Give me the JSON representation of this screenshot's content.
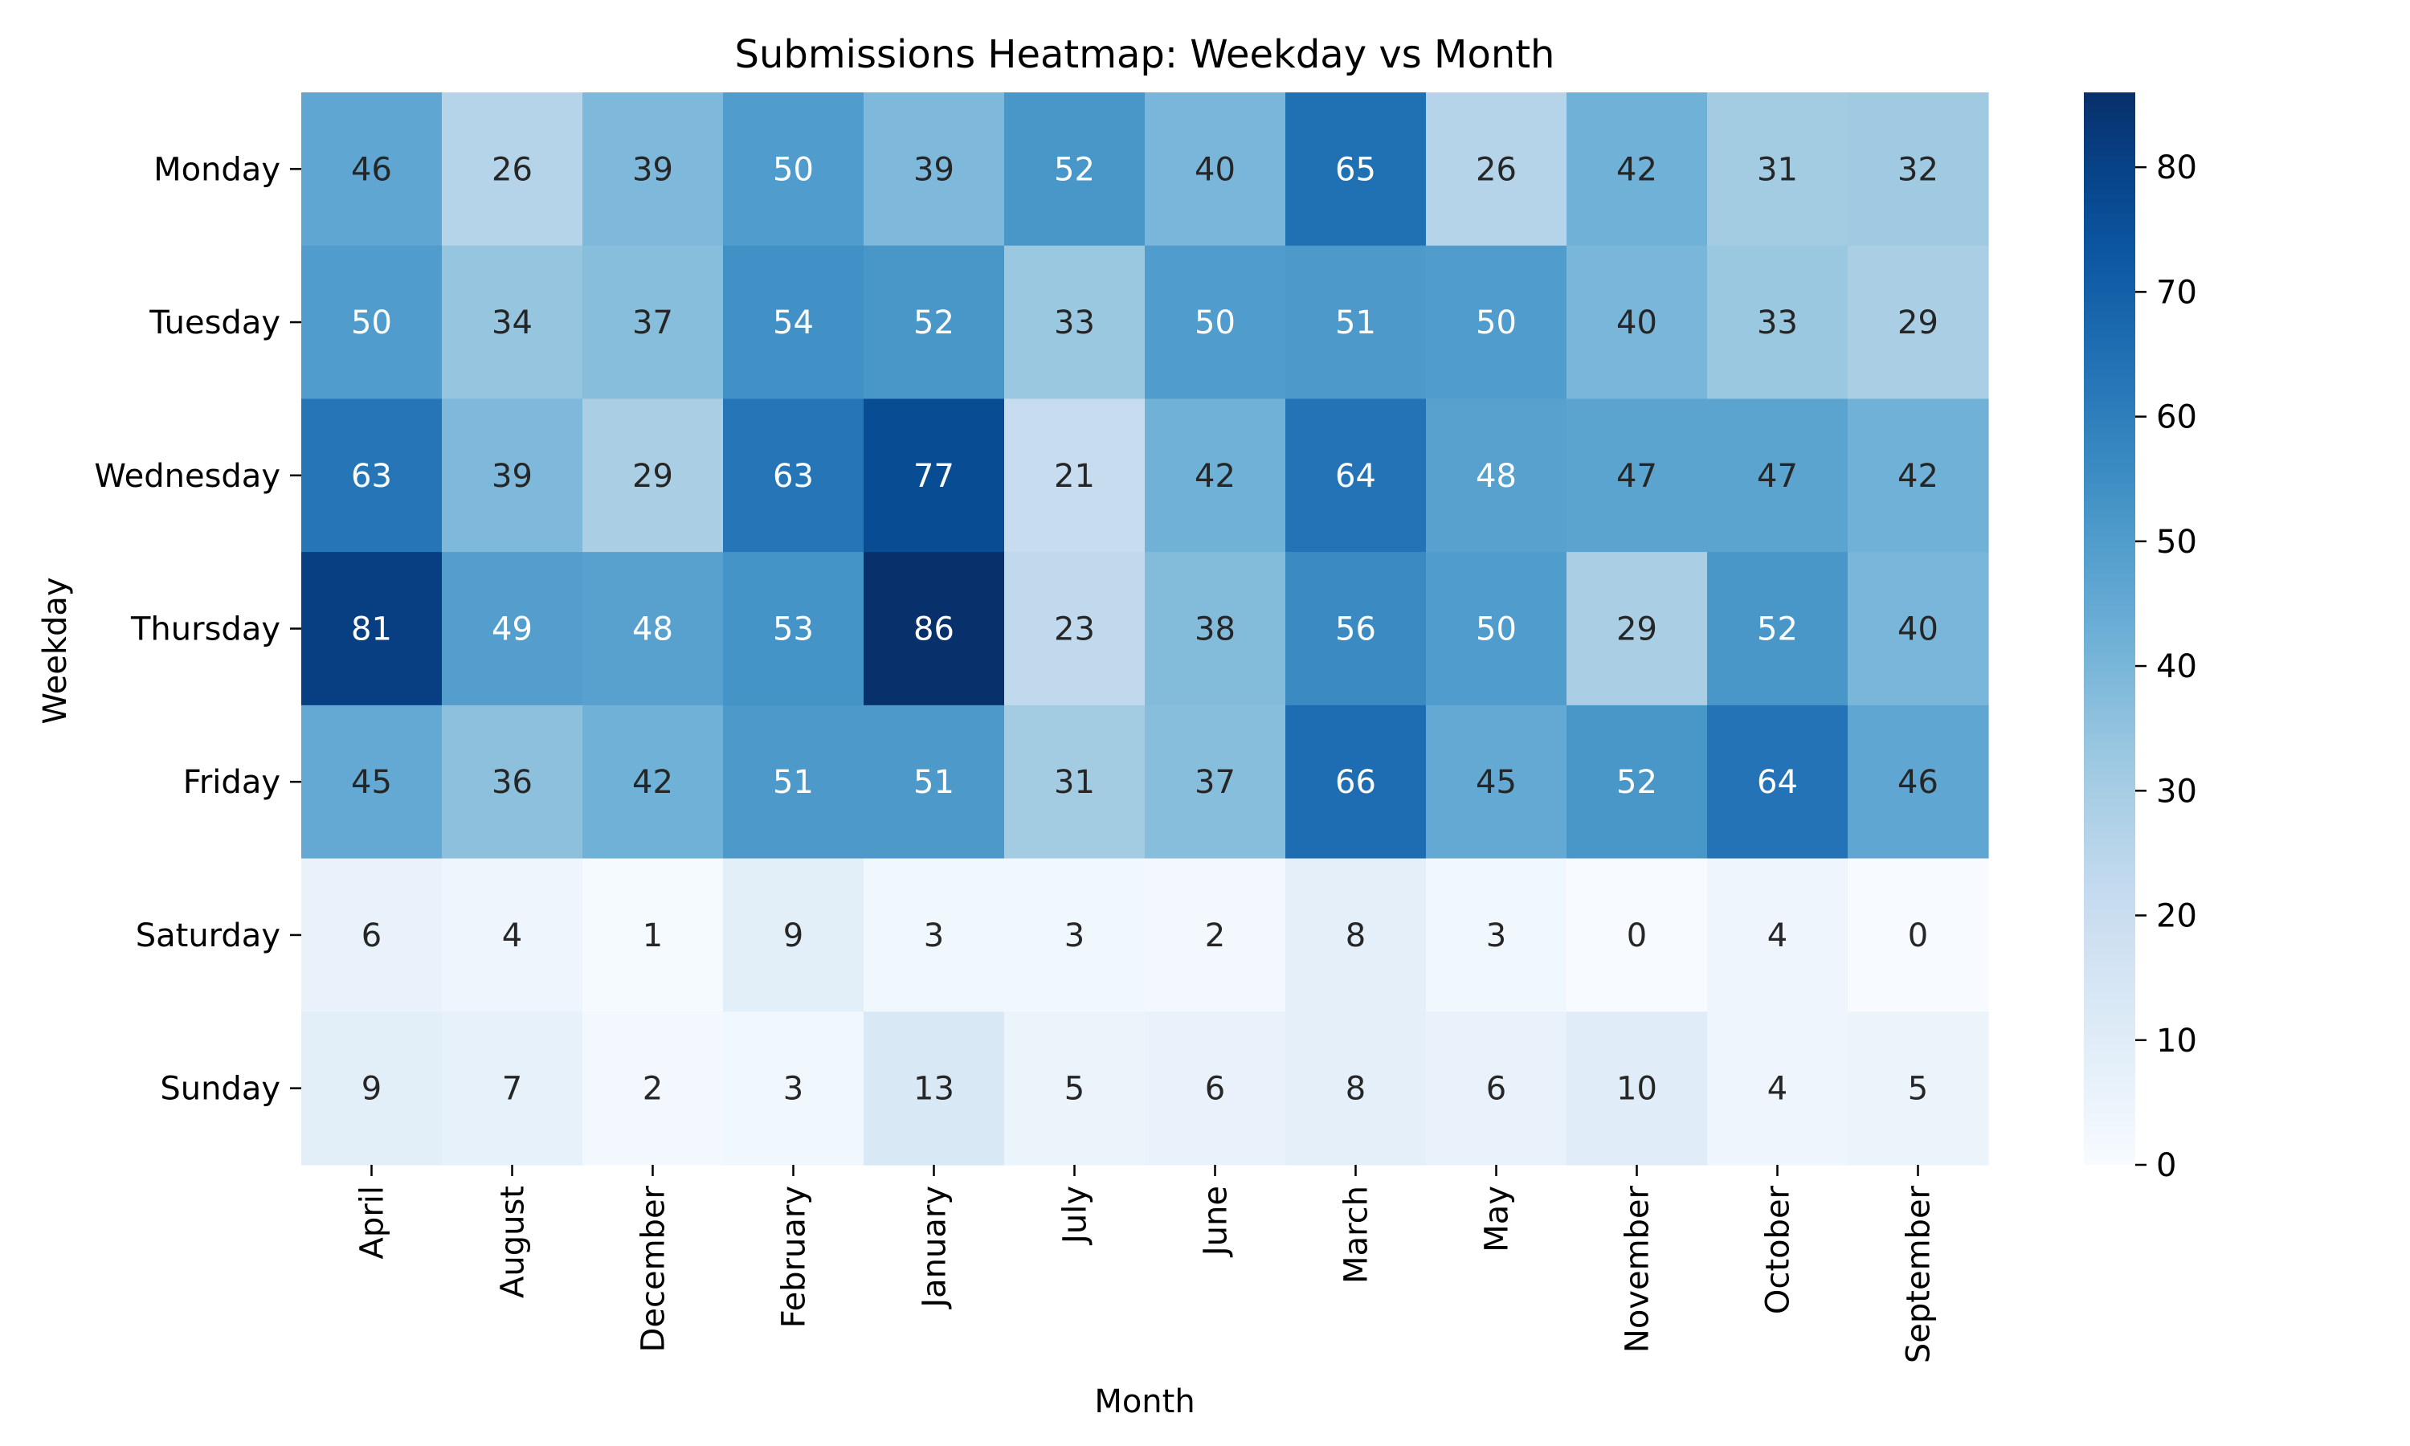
{
  "chart_data": {
    "type": "heatmap",
    "title": "Submissions Heatmap: Weekday vs Month",
    "xlabel": "Month",
    "ylabel": "Weekday",
    "x_categories": [
      "April",
      "August",
      "December",
      "February",
      "January",
      "July",
      "June",
      "March",
      "May",
      "November",
      "October",
      "September"
    ],
    "y_categories": [
      "Monday",
      "Tuesday",
      "Wednesday",
      "Thursday",
      "Friday",
      "Saturday",
      "Sunday"
    ],
    "values": [
      [
        46,
        26,
        39,
        50,
        39,
        52,
        40,
        65,
        26,
        42,
        31,
        32
      ],
      [
        50,
        34,
        37,
        54,
        52,
        33,
        50,
        51,
        50,
        40,
        33,
        29
      ],
      [
        63,
        39,
        29,
        63,
        77,
        21,
        42,
        64,
        48,
        47,
        47,
        42
      ],
      [
        81,
        49,
        48,
        53,
        86,
        23,
        38,
        56,
        50,
        29,
        52,
        40
      ],
      [
        45,
        36,
        42,
        51,
        51,
        31,
        37,
        66,
        45,
        52,
        64,
        46
      ],
      [
        6,
        4,
        1,
        9,
        3,
        3,
        2,
        8,
        3,
        0,
        4,
        0
      ],
      [
        9,
        7,
        2,
        3,
        13,
        5,
        6,
        8,
        6,
        10,
        4,
        5
      ]
    ],
    "colorbar": {
      "min": 0,
      "max": 86,
      "ticks": [
        0,
        10,
        20,
        30,
        40,
        50,
        60,
        70,
        80
      ],
      "colormap": "Blues"
    },
    "annotations": true,
    "grid": false
  }
}
